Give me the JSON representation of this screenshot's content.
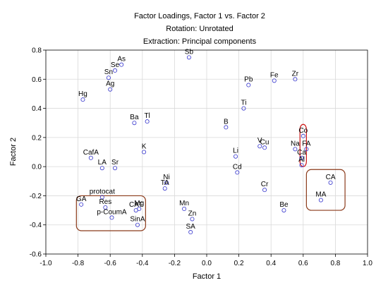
{
  "chart_data": {
    "type": "scatter",
    "title": "Factor Loadings, Factor 1 vs. Factor 2",
    "subtitle_lines": [
      "Rotation: Unrotated",
      "Extraction: Principal components"
    ],
    "xlabel": "Factor 1",
    "ylabel": "Factor 2",
    "xlim": [
      -1.0,
      1.0
    ],
    "ylim": [
      -0.6,
      0.8
    ],
    "xticks": [
      -1.0,
      -0.8,
      -0.6,
      -0.4,
      -0.2,
      0.0,
      0.2,
      0.4,
      0.6,
      0.8,
      1.0
    ],
    "yticks": [
      -0.6,
      -0.4,
      -0.2,
      0.0,
      0.2,
      0.4,
      0.6,
      0.8
    ],
    "xtick_labels": [
      "-1.0",
      "-0.8",
      "-0.6",
      "-0.4",
      "-0.2",
      "0.0",
      "0.2",
      "0.4",
      "0.6",
      "0.8",
      "1.0"
    ],
    "ytick_labels": [
      "-0.6",
      "-0.4",
      "-0.2",
      "0.0",
      "0.2",
      "0.4",
      "0.6",
      "0.8"
    ],
    "grid": true,
    "points": [
      {
        "label": "Sb",
        "x": -0.11,
        "y": 0.75
      },
      {
        "label": "As",
        "x": -0.53,
        "y": 0.7
      },
      {
        "label": "Se",
        "x": -0.57,
        "y": 0.66
      },
      {
        "label": "Sn",
        "x": -0.61,
        "y": 0.61
      },
      {
        "label": "Ag",
        "x": -0.6,
        "y": 0.53
      },
      {
        "label": "Hg",
        "x": -0.77,
        "y": 0.46
      },
      {
        "label": "Pb",
        "x": 0.26,
        "y": 0.56
      },
      {
        "label": "Fe",
        "x": 0.42,
        "y": 0.59
      },
      {
        "label": "Zr",
        "x": 0.55,
        "y": 0.6
      },
      {
        "label": "Ti",
        "x": 0.23,
        "y": 0.4
      },
      {
        "label": "Ba",
        "x": -0.45,
        "y": 0.3
      },
      {
        "label": "Tl",
        "x": -0.37,
        "y": 0.31
      },
      {
        "label": "B",
        "x": 0.12,
        "y": 0.27
      },
      {
        "label": "Co",
        "x": 0.6,
        "y": 0.21
      },
      {
        "label": "V",
        "x": 0.33,
        "y": 0.14
      },
      {
        "label": "Cu",
        "x": 0.36,
        "y": 0.13
      },
      {
        "label": "Na",
        "x": 0.55,
        "y": 0.12
      },
      {
        "label": "FA",
        "x": 0.62,
        "y": 0.12
      },
      {
        "label": "Ca",
        "x": 0.59,
        "y": 0.06
      },
      {
        "label": "Al",
        "x": 0.59,
        "y": 0.01
      },
      {
        "label": "K",
        "x": -0.39,
        "y": 0.1
      },
      {
        "label": "Li",
        "x": 0.18,
        "y": 0.07
      },
      {
        "label": "CafA",
        "x": -0.72,
        "y": 0.06
      },
      {
        "label": "LA",
        "x": -0.65,
        "y": -0.01
      },
      {
        "label": "Sr",
        "x": -0.57,
        "y": -0.01
      },
      {
        "label": "Cd",
        "x": 0.19,
        "y": -0.04
      },
      {
        "label": "Ni",
        "x": -0.25,
        "y": -0.11
      },
      {
        "label": "TA",
        "x": -0.26,
        "y": -0.15
      },
      {
        "label": "Cr",
        "x": 0.36,
        "y": -0.16
      },
      {
        "label": "CA",
        "x": 0.77,
        "y": -0.11
      },
      {
        "label": "MA",
        "x": 0.71,
        "y": -0.23
      },
      {
        "label": "protocat",
        "x": -0.65,
        "y": -0.21
      },
      {
        "label": "GA",
        "x": -0.78,
        "y": -0.26
      },
      {
        "label": "Res",
        "x": -0.63,
        "y": -0.28
      },
      {
        "label": "Mg",
        "x": -0.42,
        "y": -0.29
      },
      {
        "label": "CAT",
        "x": -0.44,
        "y": -0.3
      },
      {
        "label": "p-CoumA",
        "x": -0.59,
        "y": -0.35
      },
      {
        "label": "SinA",
        "x": -0.43,
        "y": -0.4
      },
      {
        "label": "Mn",
        "x": -0.14,
        "y": -0.29
      },
      {
        "label": "Be",
        "x": 0.48,
        "y": -0.3
      },
      {
        "label": "Zn",
        "x": -0.09,
        "y": -0.36
      },
      {
        "label": "SA",
        "x": -0.1,
        "y": -0.45
      }
    ],
    "annotations": [
      {
        "kind": "rounded-box",
        "color": "#8b3a1a",
        "x0": -0.81,
        "x1": -0.38,
        "y0": -0.44,
        "y1": -0.2
      },
      {
        "kind": "rounded-box",
        "color": "#cc1111",
        "x0": 0.58,
        "x1": 0.62,
        "y0": 0.0,
        "y1": 0.29
      },
      {
        "kind": "rounded-box",
        "color": "#8b3a1a",
        "x0": 0.62,
        "x1": 0.86,
        "y0": -0.3,
        "y1": -0.02
      }
    ]
  }
}
